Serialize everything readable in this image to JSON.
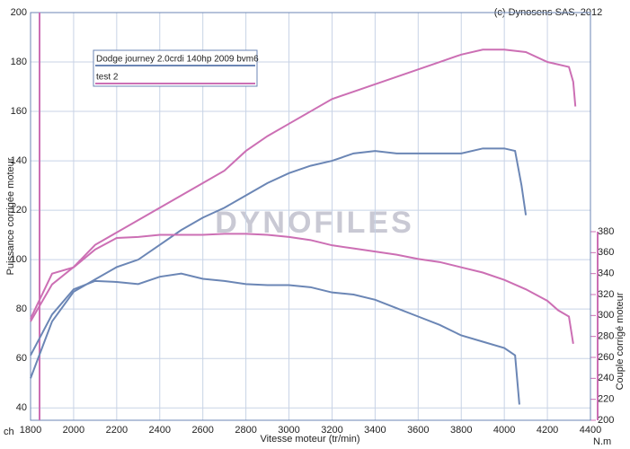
{
  "chart_data": {
    "type": "line",
    "copyright": "(c) Dynosens SAS, 2012",
    "watermark": "DYNOFILES",
    "xlabel": "Vitesse moteur (tr/min)",
    "ylabel": "Puissance corrigée moteur",
    "y2label": "Couple corrigé moteur",
    "yunit": "ch",
    "y2unit": "N.m",
    "xlim": [
      1800,
      4400
    ],
    "xticks": [
      1800,
      2000,
      2200,
      2400,
      2600,
      2800,
      3000,
      3200,
      3400,
      3600,
      3800,
      4000,
      4200,
      4400
    ],
    "ylim": [
      35,
      200
    ],
    "yticks": [
      40,
      60,
      80,
      100,
      120,
      140,
      160,
      180,
      200
    ],
    "y2lim": [
      200,
      380
    ],
    "y2ticks": [
      200,
      220,
      240,
      260,
      280,
      300,
      320,
      340,
      360,
      380
    ],
    "grid": true,
    "series": [
      {
        "name": "Dodge journey 2.0crdi 140hp 2009 bvm6",
        "color": "#6b86b5",
        "x": [
          1800,
          1900,
          2000,
          2100,
          2200,
          2300,
          2400,
          2500,
          2600,
          2700,
          2800,
          2900,
          3000,
          3100,
          3200,
          3300,
          3400,
          3500,
          3600,
          3700,
          3800,
          3900,
          4000,
          4050,
          4080,
          4100
        ],
        "values": [
          52,
          75,
          87,
          92,
          97,
          100,
          106,
          112,
          117,
          121,
          126,
          131,
          135,
          138,
          140,
          143,
          144,
          143,
          143,
          143,
          143,
          145,
          145,
          144,
          130,
          118
        ]
      },
      {
        "name": "test 2",
        "color": "#cc6fb4",
        "x": [
          1800,
          1900,
          2000,
          2100,
          2200,
          2300,
          2400,
          2500,
          2600,
          2700,
          2800,
          2900,
          3000,
          3100,
          3200,
          3300,
          3400,
          3500,
          3600,
          3700,
          3800,
          3900,
          4000,
          4100,
          4200,
          4300,
          4320,
          4330
        ],
        "values": [
          75,
          90,
          97,
          106,
          111,
          116,
          121,
          126,
          131,
          136,
          144,
          150,
          155,
          160,
          165,
          168,
          171,
          174,
          177,
          180,
          183,
          185,
          185,
          184,
          180,
          178,
          172,
          162
        ]
      },
      {
        "color": "#6b86b5",
        "axis": "y2",
        "x": [
          1800,
          1900,
          2000,
          2100,
          2200,
          2300,
          2400,
          2500,
          2600,
          2700,
          2800,
          2900,
          3000,
          3100,
          3200,
          3300,
          3400,
          3500,
          3600,
          3700,
          3800,
          3900,
          4000,
          4050,
          4070
        ],
        "values": [
          262,
          301,
          325,
          333,
          332,
          330,
          337,
          340,
          335,
          333,
          330,
          329,
          329,
          327,
          322,
          320,
          315,
          307,
          299,
          291,
          281,
          275,
          269,
          262,
          215
        ]
      },
      {
        "color": "#cc6fb4",
        "axis": "y2",
        "x": [
          1800,
          1900,
          2000,
          2100,
          2200,
          2300,
          2400,
          2500,
          2600,
          2700,
          2800,
          2900,
          3000,
          3100,
          3200,
          3300,
          3400,
          3500,
          3600,
          3700,
          3800,
          3900,
          4000,
          4100,
          4200,
          4250,
          4300,
          4320
        ],
        "values": [
          297,
          340,
          346,
          363,
          374,
          375,
          377,
          377,
          377,
          378,
          378,
          377,
          375,
          372,
          367,
          364,
          361,
          358,
          354,
          351,
          346,
          341,
          334,
          325,
          314,
          305,
          299,
          273
        ]
      }
    ]
  }
}
